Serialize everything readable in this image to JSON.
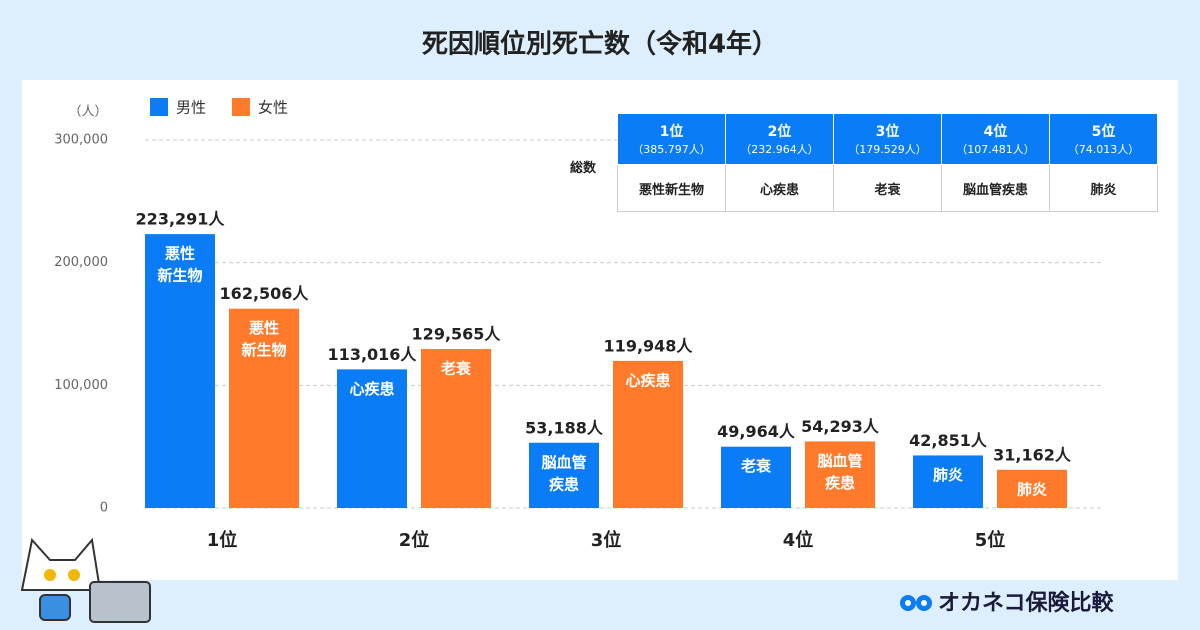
{
  "chart_data": {
    "type": "bar",
    "title": "死因順位別死亡数（令和4年）",
    "y_unit": "（人）",
    "categories": [
      "1位",
      "2位",
      "3位",
      "4位",
      "5位"
    ],
    "series": [
      {
        "name": "男性",
        "color": "#0a7cf5",
        "values": [
          223291,
          113016,
          53188,
          49964,
          42851
        ],
        "value_labels": [
          "223,291人",
          "113,016人",
          "53,188人",
          "49,964人",
          "42,851人"
        ],
        "bar_labels": [
          [
            "悪性",
            "新生物"
          ],
          [
            "心疾患"
          ],
          [
            "脳血管",
            "疾患"
          ],
          [
            "老衰"
          ],
          [
            "肺炎"
          ]
        ]
      },
      {
        "name": "女性",
        "color": "#ff7a2a",
        "values": [
          162506,
          129565,
          119948,
          54293,
          31162
        ],
        "value_labels": [
          "162,506人",
          "129,565人",
          "119,948人",
          "54,293人",
          "31,162人"
        ],
        "bar_labels": [
          [
            "悪性",
            "新生物"
          ],
          [
            "老衰"
          ],
          [
            "心疾患"
          ],
          [
            "脳血管",
            "疾患"
          ],
          [
            "肺炎"
          ]
        ]
      }
    ],
    "ylim": [
      0,
      300000
    ],
    "yticks": [
      0,
      {
        "value": 100000,
        "label": "100,000"
      },
      {
        "value": 200000,
        "label": "200,000"
      },
      {
        "value": 300000,
        "label": "300,000"
      }
    ],
    "grid": true,
    "table": {
      "row_label": "総数",
      "columns": [
        {
          "rank": "1位",
          "total": "（385.797人）",
          "cause": "悪性新生物"
        },
        {
          "rank": "2位",
          "total": "（232.964人）",
          "cause": "心疾患"
        },
        {
          "rank": "3位",
          "total": "（179.529人）",
          "cause": "老衰"
        },
        {
          "rank": "4位",
          "total": "（107.481人）",
          "cause": "脳血管疾患"
        },
        {
          "rank": "5位",
          "total": "（74.013人）",
          "cause": "肺炎"
        }
      ]
    }
  },
  "brand": "オカネコ保険比較"
}
